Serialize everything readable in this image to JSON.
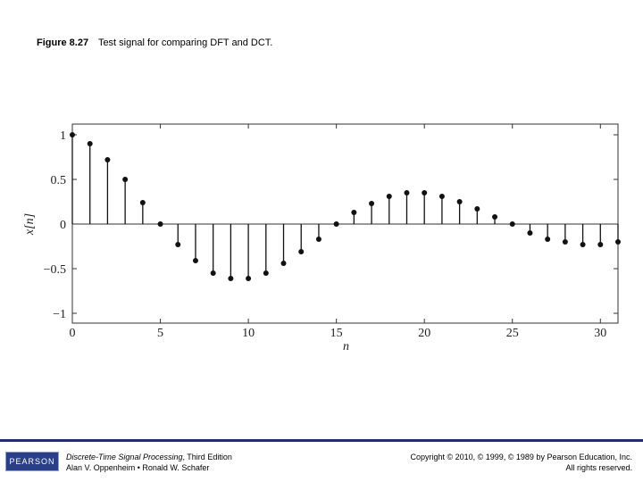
{
  "caption": {
    "figure_number": "Figure 8.27",
    "text": "Test signal for comparing DFT and DCT."
  },
  "footer": {
    "logo": "PEARSON",
    "book_title": "Discrete-Time Signal Processing",
    "book_edition": ", Third Edition",
    "authors": "Alan V. Oppenheim • Ronald W. Schafer",
    "copyright": "Copyright © 2010, © 1999, © 1989 by Pearson Education, Inc.",
    "rights": "All rights reserved."
  },
  "chart_data": {
    "type": "stem",
    "xlabel": "n",
    "ylabel": "x[n]",
    "xlim": [
      0,
      31
    ],
    "ylim": [
      -1,
      1
    ],
    "xticks": [
      "0",
      "5",
      "10",
      "15",
      "20",
      "25",
      "30"
    ],
    "yticks": [
      "1",
      "0.5",
      "0",
      "−0.5",
      "−1"
    ],
    "grid": false,
    "x": [
      0,
      1,
      2,
      3,
      4,
      5,
      6,
      7,
      8,
      9,
      10,
      11,
      12,
      13,
      14,
      15,
      16,
      17,
      18,
      19,
      20,
      21,
      22,
      23,
      24,
      25,
      26,
      27,
      28,
      29,
      30,
      31
    ],
    "values": [
      1.0,
      0.9,
      0.72,
      0.5,
      0.24,
      0.0,
      -0.23,
      -0.41,
      -0.55,
      -0.61,
      -0.61,
      -0.55,
      -0.44,
      -0.31,
      -0.17,
      0.0,
      0.13,
      0.23,
      0.31,
      0.35,
      0.35,
      0.31,
      0.25,
      0.17,
      0.08,
      0.0,
      -0.1,
      -0.17,
      -0.2,
      -0.23,
      -0.23,
      -0.2
    ]
  }
}
